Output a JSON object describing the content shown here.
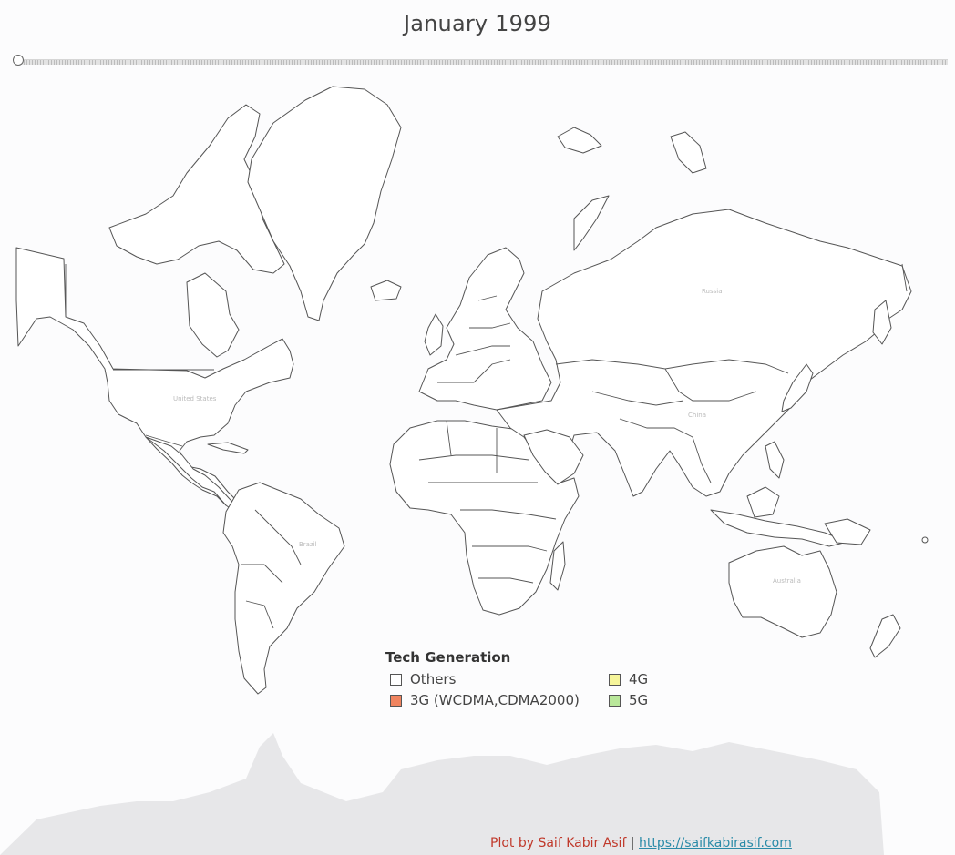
{
  "title": "January 1999",
  "legend": {
    "title": "Tech Generation",
    "items": [
      {
        "label": "Others",
        "color": "#ffffff"
      },
      {
        "label": "4G",
        "color": "#f6f59a"
      },
      {
        "label": "3G (WCDMA,CDMA2000)",
        "color": "#f0845f"
      },
      {
        "label": "5G",
        "color": "#b9e79a"
      }
    ]
  },
  "credit": {
    "author": "Plot by Saif Kabir Asif",
    "separator": "|",
    "url": "https://saifkabirasif.com"
  },
  "icons": [
    "slider-knob-icon"
  ]
}
